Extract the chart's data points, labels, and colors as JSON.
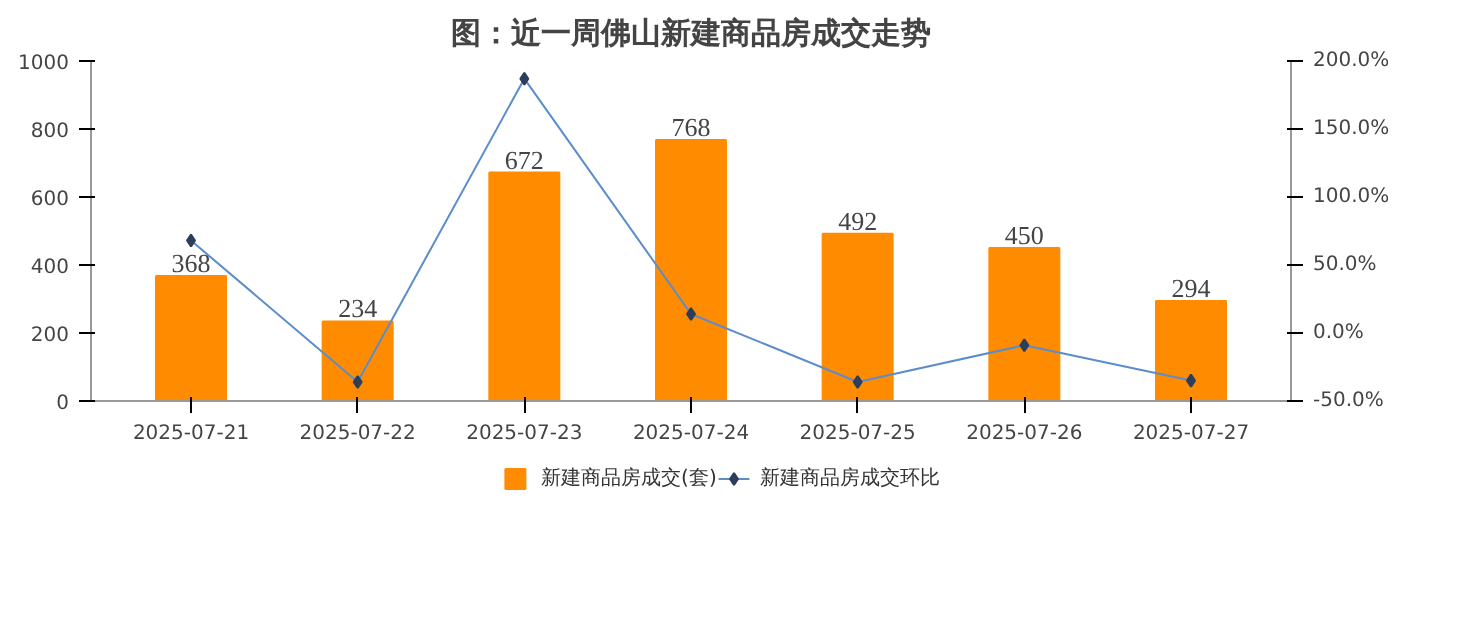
{
  "chart_data": {
    "type": "bar",
    "title": "图：近一周佛山新建商品房成交走势",
    "categories": [
      "2025-07-21",
      "2025-07-22",
      "2025-07-23",
      "2025-07-24",
      "2025-07-25",
      "2025-07-26",
      "2025-07-27"
    ],
    "series": [
      {
        "name": "新建商品房成交(套)",
        "color": "#ff8c00",
        "values": [
          368,
          234,
          672,
          768,
          492,
          450,
          294
        ],
        "value_labels": [
          "368",
          "234",
          "672",
          "768",
          "492",
          "450",
          "294"
        ]
      },
      {
        "name": "新建商品房成交环比",
        "type": "line",
        "axis": "y2",
        "color": "#5b8ccc",
        "marker": "diamond",
        "values": [
          68,
          -36,
          187,
          14,
          -36,
          -9,
          -35
        ]
      }
    ],
    "ylim": [
      0,
      1000
    ],
    "yticks": [
      0,
      200,
      400,
      600,
      800,
      1000
    ],
    "y2lim": [
      -50,
      200
    ],
    "y2ticks": [
      {
        "value": -50,
        "label": "-50.0%"
      },
      {
        "value": 0,
        "label": "0.0%"
      },
      {
        "value": 50,
        "label": "50.0%"
      },
      {
        "value": 100,
        "label": "100.0%"
      },
      {
        "value": 150,
        "label": "150.0%"
      },
      {
        "value": 200,
        "label": "200.0%"
      }
    ],
    "grid": false,
    "legend": "bottom"
  }
}
